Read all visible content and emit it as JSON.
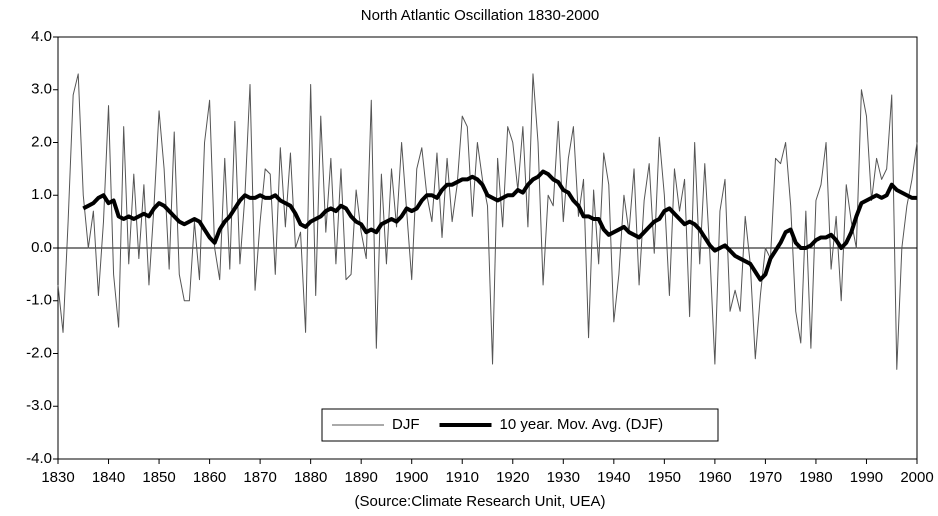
{
  "chart_data": {
    "type": "line",
    "title": "North Atlantic Oscillation 1830-2000",
    "note": "(Source:Climate Research Unit, UEA)",
    "x": [
      1830,
      1831,
      1832,
      1833,
      1834,
      1835,
      1836,
      1837,
      1838,
      1839,
      1840,
      1841,
      1842,
      1843,
      1844,
      1845,
      1846,
      1847,
      1848,
      1849,
      1850,
      1851,
      1852,
      1853,
      1854,
      1855,
      1856,
      1857,
      1858,
      1859,
      1860,
      1861,
      1862,
      1863,
      1864,
      1865,
      1866,
      1867,
      1868,
      1869,
      1870,
      1871,
      1872,
      1873,
      1874,
      1875,
      1876,
      1877,
      1878,
      1879,
      1880,
      1881,
      1882,
      1883,
      1884,
      1885,
      1886,
      1887,
      1888,
      1889,
      1890,
      1891,
      1892,
      1893,
      1894,
      1895,
      1896,
      1897,
      1898,
      1899,
      1900,
      1901,
      1902,
      1903,
      1904,
      1905,
      1906,
      1907,
      1908,
      1909,
      1910,
      1911,
      1912,
      1913,
      1914,
      1915,
      1916,
      1917,
      1918,
      1919,
      1920,
      1921,
      1922,
      1923,
      1924,
      1925,
      1926,
      1927,
      1928,
      1929,
      1930,
      1931,
      1932,
      1933,
      1934,
      1935,
      1936,
      1937,
      1938,
      1939,
      1940,
      1941,
      1942,
      1943,
      1944,
      1945,
      1946,
      1947,
      1948,
      1949,
      1950,
      1951,
      1952,
      1953,
      1954,
      1955,
      1956,
      1957,
      1958,
      1959,
      1960,
      1961,
      1962,
      1963,
      1964,
      1965,
      1966,
      1967,
      1968,
      1969,
      1970,
      1971,
      1972,
      1973,
      1974,
      1975,
      1976,
      1977,
      1978,
      1979,
      1980,
      1981,
      1982,
      1983,
      1984,
      1985,
      1986,
      1987,
      1988,
      1989,
      1990,
      1991,
      1992,
      1993,
      1994,
      1995,
      1996,
      1997,
      1998,
      1999,
      2000
    ],
    "series": [
      {
        "name": "DJF",
        "color": "#555555",
        "width": 1,
        "values": [
          -0.7,
          -1.6,
          0.5,
          2.9,
          3.3,
          1.0,
          0.0,
          0.7,
          -0.9,
          0.5,
          2.7,
          -0.5,
          -1.5,
          2.3,
          -0.3,
          1.4,
          -0.2,
          1.2,
          -0.7,
          0.8,
          2.6,
          1.5,
          -0.4,
          2.2,
          -0.5,
          -1.0,
          -1.0,
          0.5,
          -0.6,
          2.0,
          2.8,
          0.0,
          -0.6,
          1.7,
          -0.4,
          2.4,
          -0.3,
          1.0,
          3.1,
          -0.8,
          0.5,
          1.5,
          1.4,
          -0.5,
          1.9,
          0.4,
          1.8,
          0.0,
          0.3,
          -1.6,
          3.1,
          -0.9,
          2.5,
          0.3,
          1.7,
          -0.3,
          1.5,
          -0.6,
          -0.5,
          1.1,
          0.3,
          -0.2,
          2.8,
          -1.9,
          1.4,
          -0.3,
          1.5,
          0.4,
          2.0,
          0.7,
          -0.6,
          1.5,
          1.9,
          1.0,
          0.5,
          1.8,
          0.2,
          1.7,
          0.5,
          1.2,
          2.5,
          2.3,
          0.6,
          2.0,
          1.3,
          0.8,
          -2.2,
          1.7,
          0.4,
          2.3,
          2.0,
          1.1,
          2.3,
          0.4,
          3.3,
          2.0,
          -0.7,
          1.0,
          0.8,
          2.4,
          0.5,
          1.7,
          2.3,
          0.6,
          1.3,
          -1.7,
          1.1,
          -0.3,
          1.8,
          1.2,
          -1.4,
          -0.5,
          1.0,
          0.3,
          1.5,
          -0.7,
          0.9,
          1.6,
          -0.1,
          2.1,
          1.0,
          -0.9,
          1.5,
          0.7,
          1.3,
          -1.3,
          2.0,
          -0.3,
          1.6,
          -0.1,
          -2.2,
          0.7,
          1.3,
          -1.2,
          -0.8,
          -1.2,
          0.6,
          -0.3,
          -2.1,
          -0.9,
          0.0,
          -0.2,
          1.7,
          1.6,
          2.0,
          0.8,
          -1.2,
          -1.8,
          0.7,
          -1.9,
          0.9,
          1.2,
          2.0,
          -0.4,
          0.6,
          -1.0,
          1.2,
          0.5,
          0.0,
          3.0,
          2.5,
          0.9,
          1.7,
          1.3,
          1.5,
          2.9,
          -2.3,
          0.0,
          0.8,
          1.3,
          2.0
        ]
      },
      {
        "name": "10 year. Mov. Avg. (DJF)",
        "color": "#000000",
        "width": 4,
        "values": [
          null,
          null,
          null,
          null,
          null,
          0.75,
          0.8,
          0.85,
          0.95,
          1.0,
          0.85,
          0.9,
          0.6,
          0.55,
          0.6,
          0.55,
          0.6,
          0.65,
          0.6,
          0.75,
          0.85,
          0.8,
          0.7,
          0.6,
          0.5,
          0.45,
          0.5,
          0.55,
          0.5,
          0.35,
          0.2,
          0.1,
          0.35,
          0.5,
          0.6,
          0.75,
          0.9,
          1.0,
          0.95,
          0.95,
          1.0,
          0.95,
          0.95,
          1.0,
          0.9,
          0.85,
          0.8,
          0.65,
          0.45,
          0.4,
          0.5,
          0.55,
          0.6,
          0.7,
          0.75,
          0.7,
          0.8,
          0.75,
          0.6,
          0.5,
          0.45,
          0.3,
          0.35,
          0.3,
          0.45,
          0.5,
          0.55,
          0.5,
          0.6,
          0.75,
          0.7,
          0.75,
          0.9,
          1.0,
          1.0,
          0.95,
          1.1,
          1.2,
          1.2,
          1.25,
          1.3,
          1.3,
          1.35,
          1.3,
          1.2,
          1.0,
          0.95,
          0.9,
          0.95,
          1.0,
          1.0,
          1.1,
          1.05,
          1.2,
          1.3,
          1.35,
          1.45,
          1.4,
          1.3,
          1.25,
          1.1,
          1.05,
          0.9,
          0.8,
          0.6,
          0.6,
          0.55,
          0.55,
          0.35,
          0.25,
          0.3,
          0.35,
          0.4,
          0.3,
          0.25,
          0.2,
          0.3,
          0.4,
          0.5,
          0.55,
          0.7,
          0.75,
          0.65,
          0.55,
          0.45,
          0.5,
          0.45,
          0.35,
          0.2,
          0.05,
          -0.05,
          0.0,
          0.05,
          -0.05,
          -0.15,
          -0.2,
          -0.25,
          -0.3,
          -0.45,
          -0.6,
          -0.5,
          -0.2,
          -0.05,
          0.1,
          0.3,
          0.35,
          0.1,
          0.0,
          0.0,
          0.05,
          0.15,
          0.2,
          0.2,
          0.25,
          0.15,
          0.0,
          0.1,
          0.3,
          0.6,
          0.85,
          0.9,
          0.95,
          1.0,
          0.95,
          1.0,
          1.2,
          1.1,
          1.05,
          1.0,
          0.95,
          0.95
        ]
      }
    ],
    "xlim": [
      1830,
      2000
    ],
    "xticks": [
      1830,
      1840,
      1850,
      1860,
      1870,
      1880,
      1890,
      1900,
      1910,
      1920,
      1930,
      1940,
      1950,
      1960,
      1970,
      1980,
      1990,
      2000
    ],
    "ylim": [
      -4,
      4
    ],
    "yticks": [
      {
        "value": -4,
        "label": "-4.0"
      },
      {
        "value": -3,
        "label": "-3.0"
      },
      {
        "value": -2,
        "label": "-2.0"
      },
      {
        "value": -1,
        "label": "-1.0"
      },
      {
        "value": 0,
        "label": "0.0"
      },
      {
        "value": 1,
        "label": "1.0"
      },
      {
        "value": 2,
        "label": "2.0"
      },
      {
        "value": 3,
        "label": "3.0"
      },
      {
        "value": 4,
        "label": "4.0"
      }
    ],
    "legend": "lower center"
  }
}
